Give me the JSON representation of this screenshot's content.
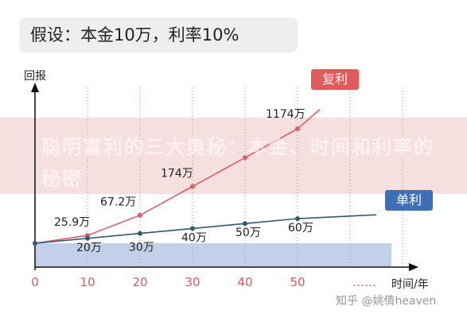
{
  "title": "假设：本金10万，利率10%",
  "banner_text": "聪明富利的三大奥秘：本金、时间和利率的秘密",
  "watermark": "知乎 @姚倩heaven",
  "colors": {
    "compound": "#d9606b",
    "simple": "#2f5b73",
    "principal": "#b8c8e6",
    "axis_tick": "#e05a5a"
  },
  "chart_data": {
    "type": "line",
    "title": "假设：本金10万，利率10%",
    "xlabel": "时间/年",
    "ylabel": "回报",
    "x_ticks": [
      "0",
      "10",
      "20",
      "30",
      "40",
      "50",
      "……"
    ],
    "x": [
      0,
      10,
      20,
      30,
      40,
      50
    ],
    "principal_band": 10,
    "series": [
      {
        "name": "复利",
        "values": [
          10,
          25.9,
          67.2,
          174,
          451,
          1174
        ],
        "labels": [
          "",
          "25.9万",
          "67.2万",
          "174万",
          "",
          "1174万"
        ]
      },
      {
        "name": "单利",
        "values": [
          10,
          20,
          30,
          40,
          50,
          60
        ],
        "labels": [
          "",
          "20万",
          "30万",
          "40万",
          "50万",
          "60万"
        ]
      }
    ]
  }
}
